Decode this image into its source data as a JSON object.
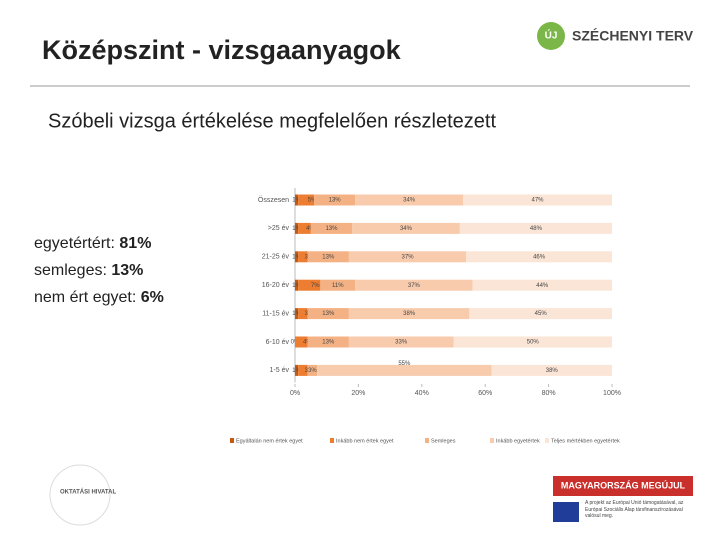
{
  "header": {
    "title": "Középszint - vizsgaanyagok",
    "logo": "SZÉCHENYI TERV",
    "logo_badge": "ÚJ"
  },
  "subtitle": "Szóbeli vizsga értékelése megfelelően részletezett",
  "summary": [
    {
      "label": "egyetértért:",
      "value": "81%"
    },
    {
      "label": "semleges:",
      "value": "13%"
    },
    {
      "label": "nem ért egyet:",
      "value": "6%"
    }
  ],
  "chart_data": {
    "type": "bar",
    "orientation": "horizontal",
    "stacked": true,
    "categories": [
      "Összesen",
      ">25 év",
      "21-25 év",
      "16-20 év",
      "11-15 év",
      "6-10 év",
      "1-5 év"
    ],
    "series": [
      {
        "name": "Egyáltalán nem értek egyet",
        "color": "#c55a11",
        "values": [
          1,
          1,
          1,
          1,
          1,
          0,
          1
        ],
        "value_labels": [
          "1%",
          "1%",
          "1%",
          "1%",
          "1%",
          "0%",
          "1%"
        ]
      },
      {
        "name": "Inkább nem értek egyet",
        "color": "#ed7d31",
        "values": [
          5,
          4,
          3,
          7,
          3,
          4,
          3
        ],
        "value_labels": [
          "5%",
          "4%",
          "3%",
          "7%",
          "3%",
          "4%",
          "3%"
        ]
      },
      {
        "name": "Semleges",
        "color": "#f4b183",
        "values": [
          13,
          13,
          13,
          11,
          13,
          13,
          3
        ],
        "value_labels": [
          "13%",
          "13%",
          "13%",
          "11%",
          "13%",
          "13%",
          "3%"
        ]
      },
      {
        "name": "Inkább egyetértek",
        "color": "#f8cbad",
        "values": [
          34,
          34,
          37,
          37,
          38,
          33,
          55
        ],
        "value_labels": [
          "34%",
          "34%",
          "37%",
          "37%",
          "38%",
          "33%",
          "55%"
        ]
      },
      {
        "name": "Teljes mértékben egyetértek",
        "color": "#fbe5d6",
        "values": [
          47,
          48,
          46,
          44,
          45,
          50,
          38
        ],
        "value_labels": [
          "47%",
          "48%",
          "46%",
          "44%",
          "45%",
          "50%",
          "38%"
        ]
      }
    ],
    "xlim": [
      0,
      100
    ],
    "xticks": [
      {
        "value": 0,
        "label": "0%"
      },
      {
        "value": 20,
        "label": "20%"
      },
      {
        "value": 40,
        "label": "40%"
      },
      {
        "value": 60,
        "label": "60%"
      },
      {
        "value": 80,
        "label": "80%"
      },
      {
        "value": 100,
        "label": "100%"
      }
    ],
    "grid": false
  },
  "footer": {
    "left_logo": "OKTATÁSI HIVATAL",
    "right_banner": "MAGYARORSZÁG MEGÚJUL",
    "eu_text": "A projekt az Európai Unió támogatásával, az Európai Szociális Alap társfinanszírozásával valósul meg."
  }
}
